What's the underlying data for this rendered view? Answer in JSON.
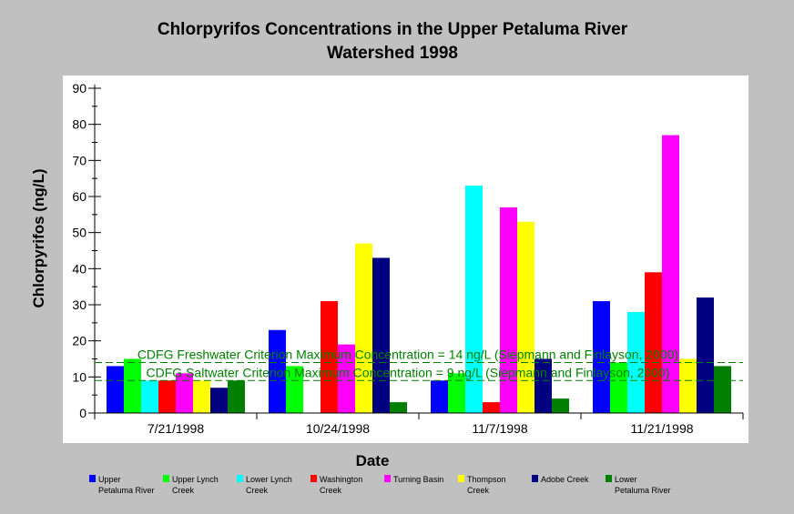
{
  "chart_data": {
    "type": "bar",
    "title": "Chlorpyrifos Concentrations in the Upper Petaluma River Watershed 1998",
    "title_lines": [
      "Chlorpyrifos Concentrations in the Upper Petaluma River",
      "Watershed 1998"
    ],
    "xlabel": "Date",
    "ylabel": "Chlorpyrifos (ng/L)",
    "ylim": [
      0,
      90
    ],
    "yticks": [
      "0",
      "10",
      "20",
      "30",
      "40",
      "50",
      "60",
      "70",
      "80",
      "90"
    ],
    "categories": [
      "7/21/1998",
      "10/24/1998",
      "11/7/1998",
      "11/21/1998"
    ],
    "series": [
      {
        "name": "Upper Petaluma River",
        "legend_lines": [
          "Upper",
          "Petaluma River"
        ],
        "color": "#0000ff",
        "values": [
          13,
          23,
          9,
          31
        ]
      },
      {
        "name": "Upper Lynch Creek",
        "legend_lines": [
          "Upper Lynch",
          "Creek"
        ],
        "color": "#00ff00",
        "values": [
          15,
          13,
          11,
          14
        ]
      },
      {
        "name": "Lower Lynch Creek",
        "legend_lines": [
          "Lower Lynch",
          "Creek"
        ],
        "color": "#00ffff",
        "values": [
          9,
          0,
          63,
          28
        ]
      },
      {
        "name": "Washington Creek",
        "legend_lines": [
          "Washington",
          "Creek"
        ],
        "color": "#ff0000",
        "values": [
          9,
          31,
          3,
          39
        ]
      },
      {
        "name": "Turning Basin",
        "legend_lines": [
          "Turning Basin"
        ],
        "color": "#ff00ff",
        "values": [
          11,
          19,
          57,
          77
        ]
      },
      {
        "name": "Thompson Creek",
        "legend_lines": [
          "Thompson",
          "Creek"
        ],
        "color": "#ffff00",
        "values": [
          9,
          47,
          53,
          15
        ]
      },
      {
        "name": "Adobe Creek",
        "legend_lines": [
          "Adobe Creek"
        ],
        "color": "#000080",
        "values": [
          7,
          43,
          15,
          32
        ]
      },
      {
        "name": "Lower Petaluma River",
        "legend_lines": [
          "Lower",
          "Petaluma River"
        ],
        "color": "#008000",
        "values": [
          9,
          3,
          4,
          13
        ]
      }
    ],
    "reference_lines": [
      {
        "value": 14,
        "label": "CDFG Freshwater Criterion Maximum Concentration = 14 ng/L (Siepmann and Finlayson, 2000)",
        "color": "#008000",
        "style": "dashed"
      },
      {
        "value": 9,
        "label": "CDFG Saltwater Criterion Maximum Concentration = 9 ng/L (Siepmann and Finlayson, 2000)",
        "color": "#008000",
        "style": "dashed"
      }
    ],
    "grid": false,
    "legend_position": "bottom"
  }
}
